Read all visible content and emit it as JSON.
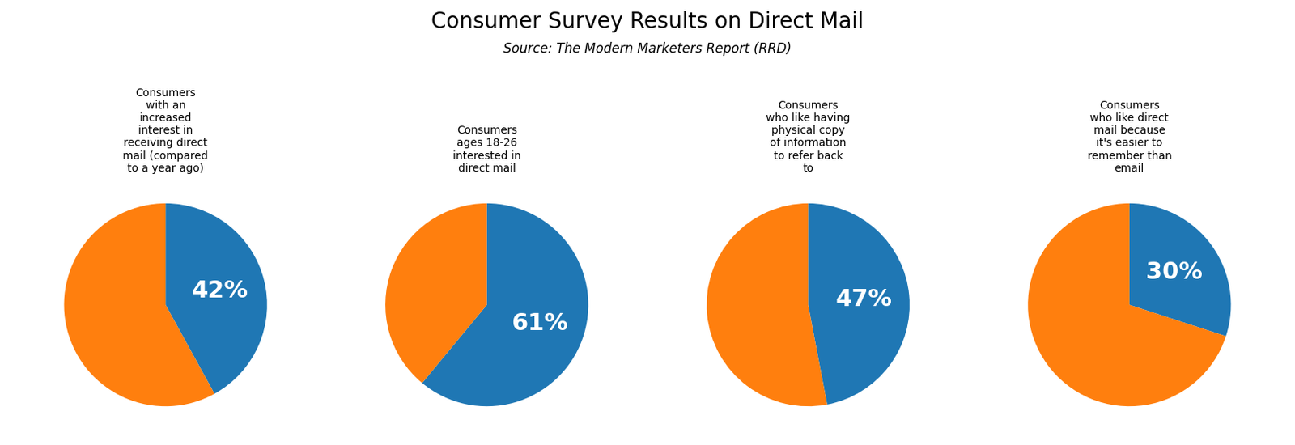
{
  "title": "Consumer Survey Results on Direct Mail",
  "subtitle": "Source: The Modern Marketers Report (RRD)",
  "chart_data": [
    {
      "type": "pie",
      "title": "Consumers\nwith an\nincreased\ninterest in\nreceiving direct\nmail (compared\nto a year ago)",
      "values": [
        42,
        58
      ],
      "value_labels": [
        "42%",
        null
      ]
    },
    {
      "type": "pie",
      "title": "Consumers\nages 18-26\ninterested in\ndirect mail",
      "values": [
        61,
        39
      ],
      "value_labels": [
        "61%",
        null
      ]
    },
    {
      "type": "pie",
      "title": "Consumers\nwho like having\nphysical copy\nof information\nto refer back\nto",
      "values": [
        47,
        53
      ],
      "value_labels": [
        "47%",
        null
      ]
    },
    {
      "type": "pie",
      "title": "Consumers\nwho like direct\nmail because\nit's easier to\nremember than\nemail",
      "values": [
        30,
        70
      ],
      "value_labels": [
        "30%",
        null
      ]
    }
  ]
}
